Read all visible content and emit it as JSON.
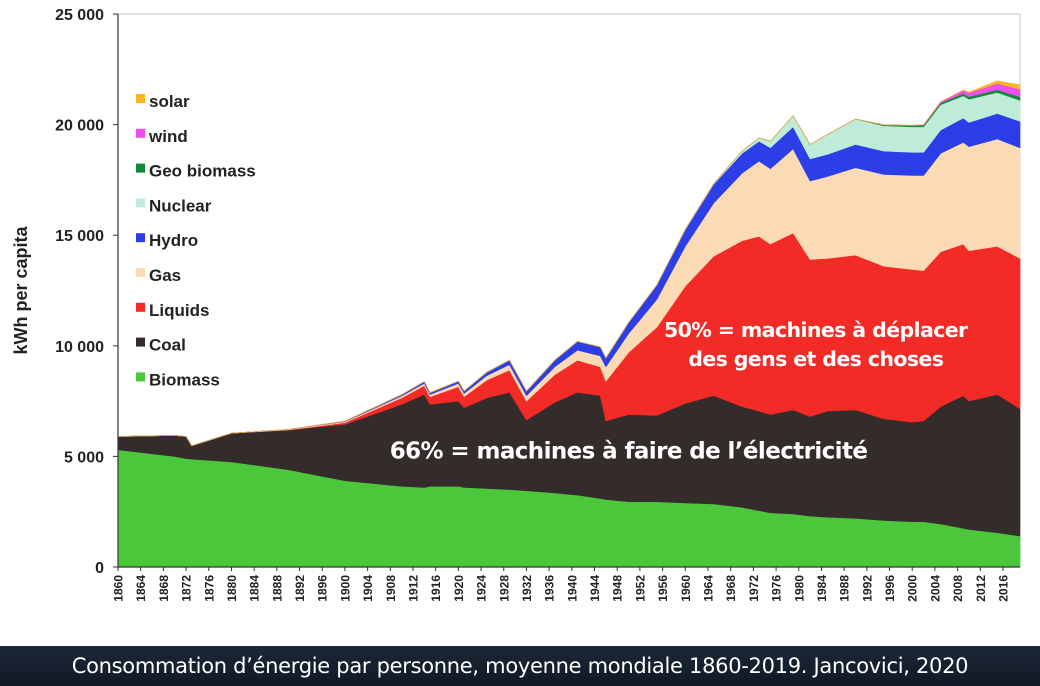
{
  "caption": "Consommation d’énergie par personne, moyenne mondiale 1860-2019. Jancovici, 2020",
  "chart_data": {
    "type": "area",
    "stacked": true,
    "ylabel": "kWh per capita",
    "xlabel": "",
    "ylim": [
      0,
      25000
    ],
    "xlim": [
      1860,
      2019
    ],
    "yticks": [
      {
        "value": 0,
        "label": "0"
      },
      {
        "value": 5000,
        "label": "5 000"
      },
      {
        "value": 10000,
        "label": "10 000"
      },
      {
        "value": 15000,
        "label": "15 000"
      },
      {
        "value": 20000,
        "label": "20 000"
      },
      {
        "value": 25000,
        "label": "25 000"
      }
    ],
    "xticks": [
      "1860",
      "1864",
      "1868",
      "1872",
      "1876",
      "1880",
      "1884",
      "1888",
      "1892",
      "1896",
      "1900",
      "1904",
      "1908",
      "1912",
      "1916",
      "1920",
      "1924",
      "1928",
      "1932",
      "1936",
      "1940",
      "1944",
      "1948",
      "1952",
      "1956",
      "1960",
      "1964",
      "1968",
      "1972",
      "1976",
      "1980",
      "1984",
      "1988",
      "1992",
      "1996",
      "2000",
      "2004",
      "2008",
      "2012",
      "2016"
    ],
    "x": [
      1860,
      1870,
      1872,
      1873,
      1880,
      1890,
      1900,
      1910,
      1914,
      1915,
      1920,
      1921,
      1925,
      1929,
      1932,
      1937,
      1941,
      1945,
      1946,
      1950,
      1955,
      1960,
      1965,
      1970,
      1973,
      1975,
      1979,
      1982,
      1985,
      1990,
      1995,
      2000,
      2002,
      2005,
      2009,
      2010,
      2015,
      2019
    ],
    "series": [
      {
        "name": "Biomass",
        "color": "#4cc73c",
        "values": [
          5300,
          5000,
          4900,
          4880,
          4750,
          4400,
          3900,
          3650,
          3600,
          3650,
          3650,
          3600,
          3550,
          3500,
          3450,
          3350,
          3250,
          3100,
          3050,
          2950,
          2950,
          2900,
          2850,
          2700,
          2550,
          2450,
          2400,
          2300,
          2250,
          2200,
          2100,
          2050,
          2050,
          1950,
          1750,
          1700,
          1550,
          1400
        ]
      },
      {
        "name": "Coal",
        "color": "#342c2b",
        "values": [
          600,
          950,
          1000,
          600,
          1300,
          1800,
          2550,
          3700,
          4200,
          3700,
          3850,
          3600,
          4100,
          4400,
          3200,
          4100,
          4650,
          4650,
          3550,
          3950,
          3900,
          4500,
          4900,
          4550,
          4500,
          4450,
          4700,
          4500,
          4800,
          4900,
          4600,
          4500,
          4550,
          5300,
          6000,
          5800,
          6250,
          5750
        ]
      },
      {
        "name": "Liquids",
        "color": "#f22b26",
        "values": [
          0,
          0,
          0,
          0,
          0,
          0,
          80,
          300,
          400,
          350,
          650,
          500,
          800,
          1000,
          850,
          1250,
          1450,
          1300,
          1800,
          2800,
          4000,
          5300,
          6300,
          7500,
          7900,
          7700,
          8000,
          7100,
          6900,
          7000,
          6900,
          6900,
          6800,
          7000,
          6850,
          6800,
          6700,
          6800
        ]
      },
      {
        "name": "Gas",
        "color": "#fbdab6",
        "values": [
          0,
          0,
          0,
          0,
          0,
          20,
          40,
          80,
          100,
          100,
          150,
          150,
          200,
          250,
          250,
          350,
          450,
          500,
          650,
          850,
          1250,
          1800,
          2400,
          3050,
          3400,
          3400,
          3800,
          3550,
          3700,
          3950,
          4150,
          4250,
          4300,
          4450,
          4600,
          4700,
          4850,
          5000
        ]
      },
      {
        "name": "Hydro",
        "color": "#2b3ee8",
        "values": [
          0,
          0,
          0,
          0,
          0,
          0,
          20,
          60,
          80,
          80,
          100,
          100,
          150,
          200,
          200,
          300,
          400,
          400,
          400,
          500,
          650,
          750,
          850,
          900,
          900,
          950,
          1000,
          1000,
          1000,
          1050,
          1050,
          1050,
          1050,
          1050,
          1100,
          1100,
          1150,
          1200
        ]
      },
      {
        "name": "Nuclear",
        "color": "#bfecd8",
        "values": [
          0,
          0,
          0,
          0,
          0,
          0,
          0,
          0,
          0,
          0,
          0,
          0,
          0,
          0,
          0,
          0,
          0,
          0,
          0,
          0,
          0,
          10,
          30,
          100,
          150,
          300,
          500,
          650,
          900,
          1150,
          1150,
          1150,
          1150,
          1150,
          1000,
          1050,
          950,
          950
        ]
      },
      {
        "name": "Geo biomass",
        "color": "#0e8a3a",
        "values": [
          0,
          0,
          0,
          0,
          0,
          0,
          0,
          0,
          0,
          0,
          0,
          0,
          0,
          0,
          0,
          0,
          0,
          0,
          0,
          0,
          0,
          0,
          0,
          0,
          0,
          0,
          0,
          0,
          0,
          0,
          40,
          60,
          70,
          80,
          100,
          110,
          130,
          150
        ]
      },
      {
        "name": "wind",
        "color": "#ee4df0",
        "values": [
          0,
          0,
          0,
          0,
          0,
          0,
          0,
          0,
          0,
          0,
          0,
          0,
          0,
          0,
          0,
          0,
          0,
          0,
          0,
          0,
          0,
          0,
          0,
          0,
          0,
          0,
          0,
          0,
          0,
          0,
          0,
          10,
          20,
          50,
          150,
          180,
          280,
          350
        ]
      },
      {
        "name": "solar",
        "color": "#f6b81e",
        "values": [
          0,
          0,
          0,
          0,
          0,
          0,
          0,
          0,
          0,
          0,
          0,
          0,
          0,
          0,
          0,
          0,
          0,
          0,
          0,
          0,
          0,
          0,
          0,
          0,
          0,
          0,
          0,
          0,
          0,
          0,
          0,
          0,
          0,
          0,
          20,
          30,
          120,
          200
        ]
      }
    ],
    "legend": {
      "placement": "top-left",
      "order": [
        "solar",
        "wind",
        "Geo biomass",
        "Nuclear",
        "Hydro",
        "Gas",
        "Liquids",
        "Coal",
        "Biomass"
      ]
    },
    "annotations": [
      {
        "key": "liquids_note",
        "lines": [
          "50% = machines à déplacer",
          "des gens et des choses"
        ],
        "x": 1983,
        "y": 10400
      },
      {
        "key": "coal_note",
        "lines": [
          "66% = machines à faire de l’électricité"
        ],
        "x": 1950,
        "y": 4900
      }
    ]
  }
}
